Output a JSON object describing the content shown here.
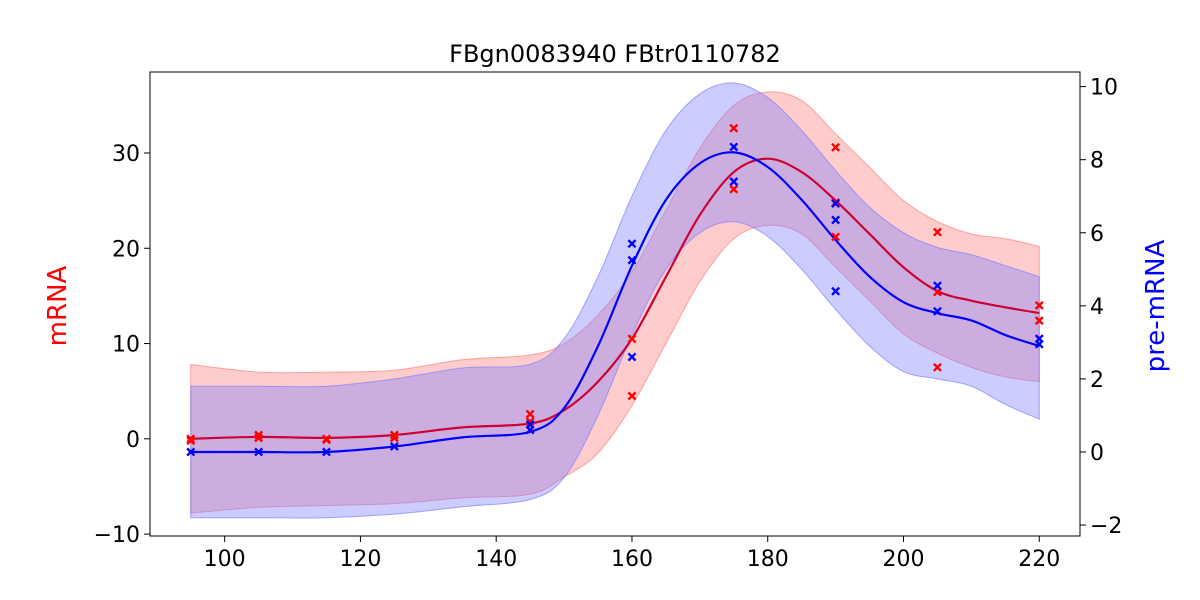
{
  "chart_data": {
    "type": "line",
    "title": "FBgn0083940 FBtr0110782",
    "xlabel": "",
    "ylabel_left": "mRNA",
    "ylabel_right": "pre-mRNA",
    "xlim": [
      89,
      226
    ],
    "ylim_left": [
      -10.2,
      38.5
    ],
    "ylim_right": [
      -2.3,
      10.4
    ],
    "x_ticks": [
      100,
      120,
      140,
      160,
      180,
      200,
      220
    ],
    "y_left_ticks": [
      -10,
      0,
      10,
      20,
      30
    ],
    "y_right_ticks": [
      -2,
      0,
      2,
      4,
      6,
      8,
      10
    ],
    "tick_labels": {
      "x": [
        "100",
        "120",
        "140",
        "160",
        "180",
        "200",
        "220"
      ],
      "y_left": [
        "−10",
        "0",
        "10",
        "20",
        "30"
      ],
      "y_right": [
        "−2",
        "0",
        "2",
        "4",
        "6",
        "8",
        "10"
      ]
    },
    "grid": false,
    "colors": {
      "mrna": "#ff0000",
      "mrna_line": "#cc0033",
      "mrna_band": "#ff8080",
      "premrna": "#0000ff",
      "premrna_band": "#8080ff",
      "axis": "#000000"
    },
    "series": [
      {
        "axis": "left",
        "fit": {
          "x": [
            95,
            105,
            115,
            125,
            135,
            145,
            150,
            155,
            160,
            165,
            170,
            175,
            180,
            185,
            190,
            195,
            200,
            205,
            210,
            215,
            220
          ],
          "mean": [
            0,
            0.2,
            0.1,
            0.4,
            1.2,
            1.6,
            3,
            6,
            10.5,
            17,
            23.5,
            28,
            29.4,
            28,
            25,
            21.5,
            18,
            15.5,
            14.5,
            13.8,
            13.2
          ],
          "upper": [
            7.8,
            7,
            7,
            7.2,
            8.3,
            8.8,
            10,
            13,
            17.5,
            24,
            30.5,
            35,
            36.4,
            35.5,
            32,
            28.5,
            25,
            22.8,
            21.5,
            21,
            20.2
          ],
          "lower": [
            -7.8,
            -7.2,
            -7,
            -6.8,
            -6.2,
            -5.8,
            -4,
            -1.5,
            3.5,
            10,
            16.5,
            21,
            22.4,
            21.5,
            18,
            14.5,
            11,
            9,
            7.5,
            6.5,
            6
          ]
        },
        "points": [
          {
            "x": 95,
            "y": 0
          },
          {
            "x": 95,
            "y": -0.2
          },
          {
            "x": 105,
            "y": 0.4
          },
          {
            "x": 105,
            "y": 0.1
          },
          {
            "x": 115,
            "y": 0
          },
          {
            "x": 115,
            "y": -0.1
          },
          {
            "x": 125,
            "y": 0.4
          },
          {
            "x": 125,
            "y": 0.1
          },
          {
            "x": 145,
            "y": 2.6
          },
          {
            "x": 145,
            "y": 1.8
          },
          {
            "x": 160,
            "y": 10.5
          },
          {
            "x": 160,
            "y": 4.5
          },
          {
            "x": 175,
            "y": 32.6
          },
          {
            "x": 175,
            "y": 26.2
          },
          {
            "x": 190,
            "y": 30.6
          },
          {
            "x": 190,
            "y": 24.8
          },
          {
            "x": 190,
            "y": 21.2
          },
          {
            "x": 205,
            "y": 21.7
          },
          {
            "x": 205,
            "y": 15.4
          },
          {
            "x": 205,
            "y": 7.5
          },
          {
            "x": 220,
            "y": 14
          },
          {
            "x": 220,
            "y": 12.4
          }
        ]
      },
      {
        "axis": "right",
        "fit": {
          "x": [
            95,
            105,
            115,
            125,
            135,
            145,
            150,
            155,
            160,
            165,
            170,
            175,
            180,
            185,
            190,
            195,
            200,
            205,
            210,
            215,
            220
          ],
          "mean": [
            0,
            0,
            0,
            0.15,
            0.4,
            0.55,
            1.2,
            2.9,
            5.1,
            6.9,
            7.9,
            8.2,
            7.8,
            6.9,
            5.8,
            4.8,
            4.1,
            3.8,
            3.6,
            3.2,
            2.9
          ],
          "upper": [
            1.8,
            1.8,
            1.8,
            2,
            2.3,
            2.4,
            3.1,
            4.8,
            7,
            8.8,
            9.8,
            10.1,
            9.7,
            8.8,
            7.7,
            6.7,
            6,
            5.6,
            5.4,
            5.1,
            4.8
          ],
          "lower": [
            -1.8,
            -1.8,
            -1.8,
            -1.7,
            -1.5,
            -1.3,
            -0.7,
            1,
            3.2,
            5,
            6,
            6.3,
            5.9,
            5,
            3.9,
            2.9,
            2.2,
            2,
            1.8,
            1.3,
            0.9
          ]
        },
        "points": [
          {
            "x": 95,
            "y": 0
          },
          {
            "x": 105,
            "y": 0
          },
          {
            "x": 115,
            "y": 0
          },
          {
            "x": 125,
            "y": 0.15
          },
          {
            "x": 145,
            "y": 0.6
          },
          {
            "x": 145,
            "y": 0.75
          },
          {
            "x": 160,
            "y": 5.7
          },
          {
            "x": 160,
            "y": 5.25
          },
          {
            "x": 160,
            "y": 2.6
          },
          {
            "x": 175,
            "y": 8.35
          },
          {
            "x": 175,
            "y": 7.4
          },
          {
            "x": 190,
            "y": 6.8
          },
          {
            "x": 190,
            "y": 6.35
          },
          {
            "x": 190,
            "y": 4.4
          },
          {
            "x": 205,
            "y": 4.55
          },
          {
            "x": 205,
            "y": 3.85
          },
          {
            "x": 220,
            "y": 3.1
          },
          {
            "x": 220,
            "y": 2.95
          }
        ]
      }
    ]
  }
}
